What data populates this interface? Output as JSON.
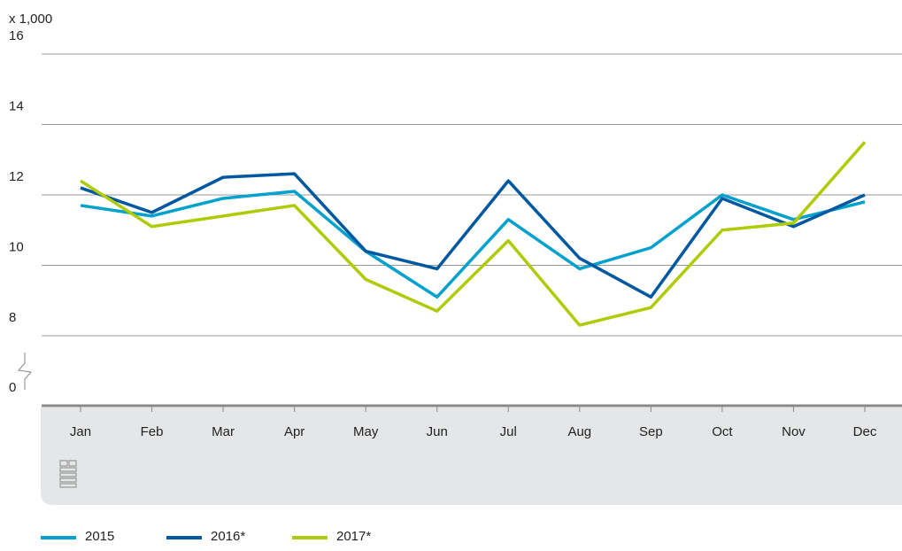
{
  "chart_data": {
    "type": "line",
    "y_unit": "x 1,000",
    "categories": [
      "Jan",
      "Feb",
      "Mar",
      "Apr",
      "May",
      "Jun",
      "Jul",
      "Aug",
      "Sep",
      "Oct",
      "Nov",
      "Dec"
    ],
    "series": [
      {
        "name": "2015",
        "color": "#00a1cd",
        "values": [
          11.7,
          11.4,
          11.9,
          12.1,
          10.4,
          9.1,
          11.3,
          9.9,
          10.5,
          12.0,
          11.3,
          11.8
        ]
      },
      {
        "name": "2016*",
        "color": "#0058a0",
        "values": [
          12.2,
          11.5,
          12.5,
          12.6,
          10.4,
          9.9,
          12.4,
          10.2,
          9.1,
          11.9,
          11.1,
          12.0
        ]
      },
      {
        "name": "2017*",
        "color": "#afcb05",
        "values": [
          12.4,
          11.1,
          11.4,
          11.7,
          9.6,
          8.7,
          10.7,
          8.3,
          8.8,
          11.0,
          11.2,
          13.5
        ]
      }
    ],
    "ylim": [
      0,
      16
    ],
    "axis_break": [
      0,
      8
    ],
    "yticks": [
      0,
      8,
      10,
      12,
      14,
      16
    ],
    "grid": true,
    "legend": "bottom"
  }
}
